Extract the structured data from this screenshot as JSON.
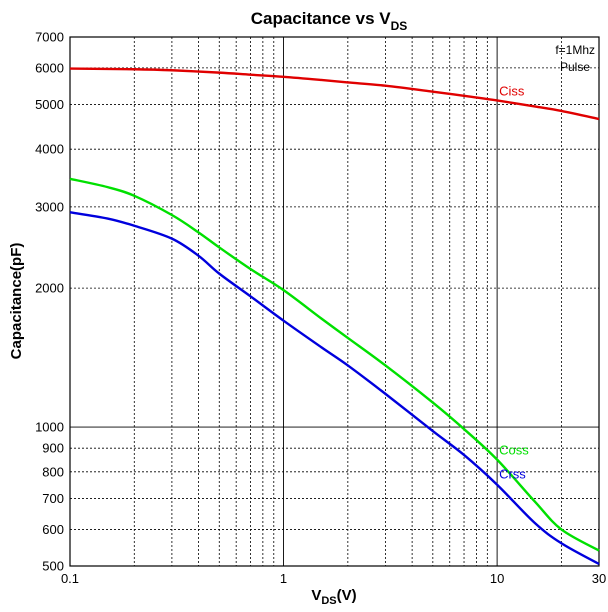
{
  "chart_data": {
    "type": "line",
    "title": {
      "main": "Capacitance vs V",
      "sub": "DS"
    },
    "xlabel": {
      "main": "V",
      "sub": "DS",
      "suffix": "(V)"
    },
    "ylabel": "Capacitance(pF)",
    "x_scale": "log",
    "y_scale": "log",
    "xlim": [
      0.1,
      30
    ],
    "ylim": [
      500,
      7000
    ],
    "grid": true,
    "notes": [
      "f=1Mhz",
      "Pulse"
    ],
    "x_ticks": [
      {
        "value": 0.1,
        "label": "0.1"
      },
      {
        "value": 1,
        "label": "1"
      },
      {
        "value": 10,
        "label": "10"
      },
      {
        "value": 30,
        "label": "30"
      }
    ],
    "y_ticks": [
      {
        "value": 500,
        "label": "500"
      },
      {
        "value": 600,
        "label": "600"
      },
      {
        "value": 700,
        "label": "700"
      },
      {
        "value": 800,
        "label": "800"
      },
      {
        "value": 900,
        "label": "900"
      },
      {
        "value": 1000,
        "label": "1000"
      },
      {
        "value": 2000,
        "label": "2000"
      },
      {
        "value": 3000,
        "label": "3000"
      },
      {
        "value": 4000,
        "label": "4000"
      },
      {
        "value": 5000,
        "label": "5000"
      },
      {
        "value": 6000,
        "label": "6000"
      },
      {
        "value": 7000,
        "label": "7000"
      }
    ],
    "series": [
      {
        "name": "Ciss",
        "color": "#e00000",
        "x": [
          0.1,
          0.2,
          0.3,
          0.5,
          0.7,
          1,
          1.5,
          2,
          3,
          5,
          7,
          10,
          15,
          20,
          30
        ],
        "y": [
          5980,
          5960,
          5930,
          5860,
          5800,
          5740,
          5650,
          5580,
          5490,
          5330,
          5220,
          5100,
          4950,
          4840,
          4650
        ]
      },
      {
        "name": "Coss",
        "color": "#00e000",
        "x": [
          0.1,
          0.15,
          0.2,
          0.3,
          0.4,
          0.5,
          0.7,
          1,
          1.5,
          2,
          3,
          5,
          7,
          10,
          15,
          20,
          30
        ],
        "y": [
          3450,
          3310,
          3170,
          2880,
          2640,
          2450,
          2200,
          1980,
          1720,
          1560,
          1360,
          1130,
          990,
          850,
          690,
          600,
          540
        ]
      },
      {
        "name": "Crss",
        "color": "#0000dd",
        "x": [
          0.1,
          0.15,
          0.2,
          0.3,
          0.4,
          0.5,
          0.7,
          1,
          1.5,
          2,
          3,
          5,
          7,
          10,
          15,
          20,
          30
        ],
        "y": [
          2920,
          2830,
          2730,
          2560,
          2350,
          2150,
          1920,
          1700,
          1490,
          1360,
          1180,
          980,
          870,
          750,
          620,
          560,
          505
        ]
      }
    ]
  }
}
